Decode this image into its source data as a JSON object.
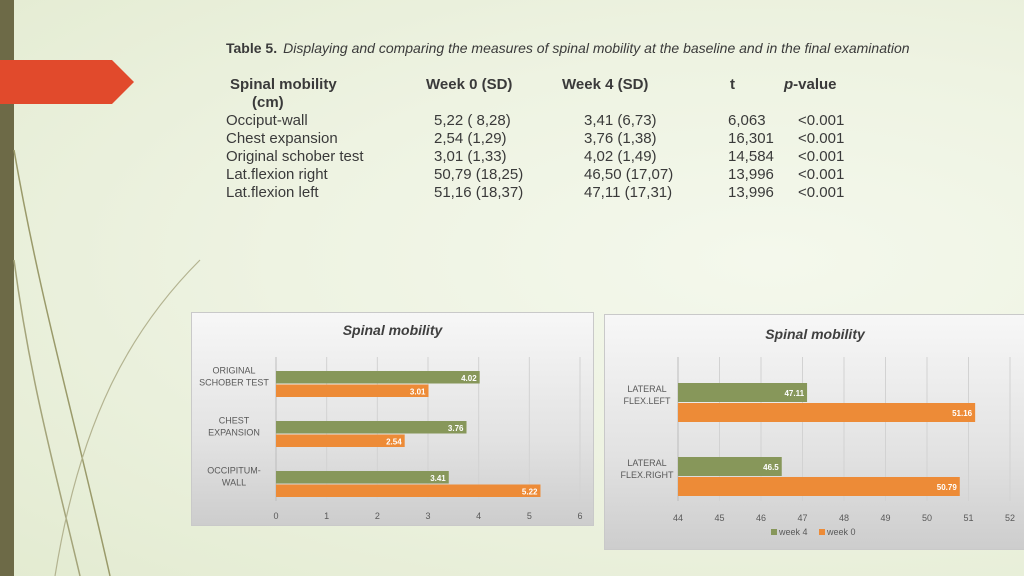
{
  "table": {
    "caption_label": "Table 5.",
    "caption_text": "Displaying and comparing the measures of spinal mobility at the baseline and in the final examination",
    "headers": {
      "col0": "Spinal mobility",
      "col0_unit": "(cm)",
      "col1": "Week 0 (SD)",
      "col2": "Week 4 (SD)",
      "col3": "t",
      "col4_prefix": "p",
      "col4_suffix": "-value"
    },
    "rows": [
      {
        "name": "Occiput-wall",
        "week0": "5,22 ( 8,28)",
        "week4": "3,41 (6,73)",
        "t": "6,063",
        "p": "<0.001"
      },
      {
        "name": "Chest expansion",
        "week0": "2,54 (1,29)",
        "week4": "3,76 (1,38)",
        "t": "16,301",
        "p": "<0.001"
      },
      {
        "name": "Original schober test",
        "week0": "3,01 (1,33)",
        "week4": "4,02 (1,49)",
        "t": "14,584",
        "p": "<0.001"
      },
      {
        "name": "Lat.flexion right",
        "week0": "50,79 (18,25)",
        "week4": "46,50 (17,07)",
        "t": "13,996",
        "p": "<0.001"
      },
      {
        "name": "Lat.flexion left",
        "week0": "51,16 (18,37)",
        "week4": "47,11 (17,31)",
        "t": "13,996",
        "p": "<0.001"
      }
    ]
  },
  "colors": {
    "week4": "#87975a",
    "week0": "#ed8b37",
    "label": "#595959",
    "grid": "#d2d2d2"
  },
  "chart_data": [
    {
      "type": "bar",
      "orientation": "horizontal",
      "title": "Spinal mobility",
      "categories": [
        [
          "ORIGINAL",
          "SCHOBER TEST"
        ],
        [
          "CHEST",
          "EXPANSION"
        ],
        [
          "OCCIPITUM-",
          "WALL"
        ]
      ],
      "series": [
        {
          "name": "week 4",
          "values": [
            4.02,
            3.76,
            3.41
          ],
          "labels": [
            "4.02",
            "3.76",
            "3.41"
          ]
        },
        {
          "name": "week 0",
          "values": [
            3.01,
            2.54,
            5.22
          ],
          "labels": [
            "3.01",
            "2.54",
            "5.22"
          ]
        }
      ],
      "xlim": [
        0,
        6
      ],
      "ticks": [
        0,
        1,
        2,
        3,
        4,
        5,
        6
      ],
      "legend": "none"
    },
    {
      "type": "bar",
      "orientation": "horizontal",
      "title": "Spinal mobility",
      "categories": [
        [
          "LATERAL",
          "FLEX.LEFT"
        ],
        [
          "LATERAL",
          "FLEX.RIGHT"
        ]
      ],
      "series": [
        {
          "name": "week 4",
          "values": [
            47.11,
            46.5
          ],
          "labels": [
            "47.11",
            "46.5"
          ]
        },
        {
          "name": "week 0",
          "values": [
            51.16,
            50.79
          ],
          "labels": [
            "51.16",
            "50.79"
          ]
        }
      ],
      "xlim": [
        44,
        52
      ],
      "ticks": [
        44,
        45,
        46,
        47,
        48,
        49,
        50,
        51,
        52
      ],
      "legend": "bottom",
      "legend_labels": [
        "week 4",
        "week 0"
      ]
    }
  ]
}
